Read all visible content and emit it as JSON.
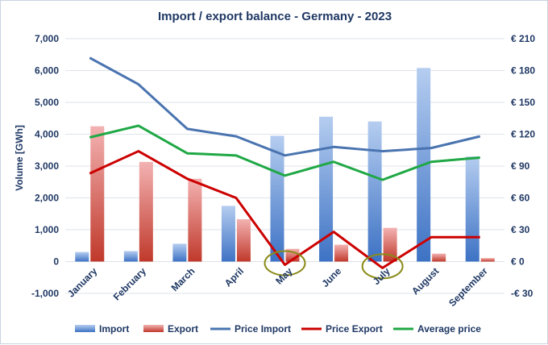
{
  "chart_data": {
    "type": "bar",
    "title": "Import / export balance - Germany - 2023",
    "categories": [
      "January",
      "February",
      "March",
      "April",
      "May",
      "June",
      "July",
      "August",
      "September"
    ],
    "ylabel": "Volume [GWh]",
    "ylim": [
      -1000,
      7000
    ],
    "yticks": [
      -1000,
      0,
      1000,
      2000,
      3000,
      4000,
      5000,
      6000,
      7000
    ],
    "ytick_labels": [
      "-1,000",
      "0",
      "1,000",
      "2,000",
      "3,000",
      "4,000",
      "5,000",
      "6,000",
      "7,000"
    ],
    "y2lim": [
      -30,
      210
    ],
    "y2ticks": [
      -30,
      0,
      30,
      60,
      90,
      120,
      150,
      180,
      210
    ],
    "y2tick_labels": [
      "-€ 30",
      "€ 0",
      "€ 30",
      "€ 60",
      "€ 90",
      "€ 120",
      "€ 150",
      "€ 180",
      "€ 210"
    ],
    "bar_series": [
      {
        "name": "Import",
        "color": "#5b8fd6",
        "values": [
          300,
          330,
          560,
          1750,
          3950,
          4550,
          4400,
          6080,
          3300
        ]
      },
      {
        "name": "Export",
        "color": "#e06666",
        "values": [
          4250,
          3130,
          2600,
          1330,
          400,
          530,
          1060,
          250,
          110
        ]
      }
    ],
    "line_series": [
      {
        "name": "Price Import",
        "color": "#4a74b0",
        "values": [
          192,
          167,
          125,
          118,
          100,
          108,
          104,
          107,
          118
        ]
      },
      {
        "name": "Price Export",
        "color": "#cc0000",
        "values": [
          83,
          104,
          78,
          60,
          -3,
          28,
          -6,
          23,
          23
        ]
      },
      {
        "name": "Average price",
        "color": "#1fa845",
        "values": [
          117,
          128,
          102,
          100,
          81,
          94,
          77,
          94,
          98
        ]
      }
    ],
    "highlight_circles": {
      "categories": [
        "May",
        "July"
      ],
      "color": "#8b8b1a"
    },
    "legend_position": "bottom"
  }
}
